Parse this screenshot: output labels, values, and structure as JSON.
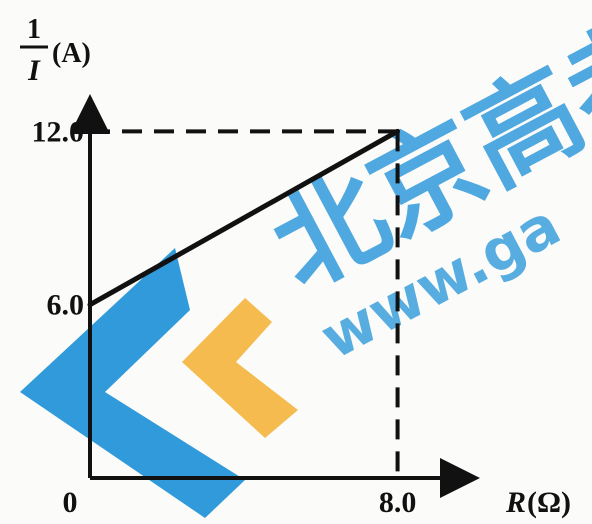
{
  "chart_data": {
    "type": "line",
    "y_axis_label": {
      "numerator": "1",
      "denominator": "I",
      "unit": "(A)"
    },
    "x_axis_label": {
      "symbol": "R",
      "unit": "(Ω)"
    },
    "origin_label": "0",
    "series": [
      {
        "x": [
          0,
          8.0
        ],
        "y": [
          6.0,
          12.0
        ]
      }
    ],
    "x_ticks": [
      {
        "value": 8.0,
        "label": "8.0"
      }
    ],
    "y_ticks": [
      {
        "value": 6.0,
        "label": "6.0"
      },
      {
        "value": 12.0,
        "label": "12.0"
      }
    ],
    "xlim": [
      0,
      10.3
    ],
    "ylim": [
      0,
      16.2
    ],
    "dashed_guides": {
      "x": 8.0,
      "y": 12.0
    },
    "grid": false,
    "legend": "none"
  },
  "watermark": {
    "cn_text": "北京高考",
    "url_text": "www.ga",
    "colors": {
      "blue": "#1a8fd6",
      "orange": "#f4b43a"
    }
  }
}
